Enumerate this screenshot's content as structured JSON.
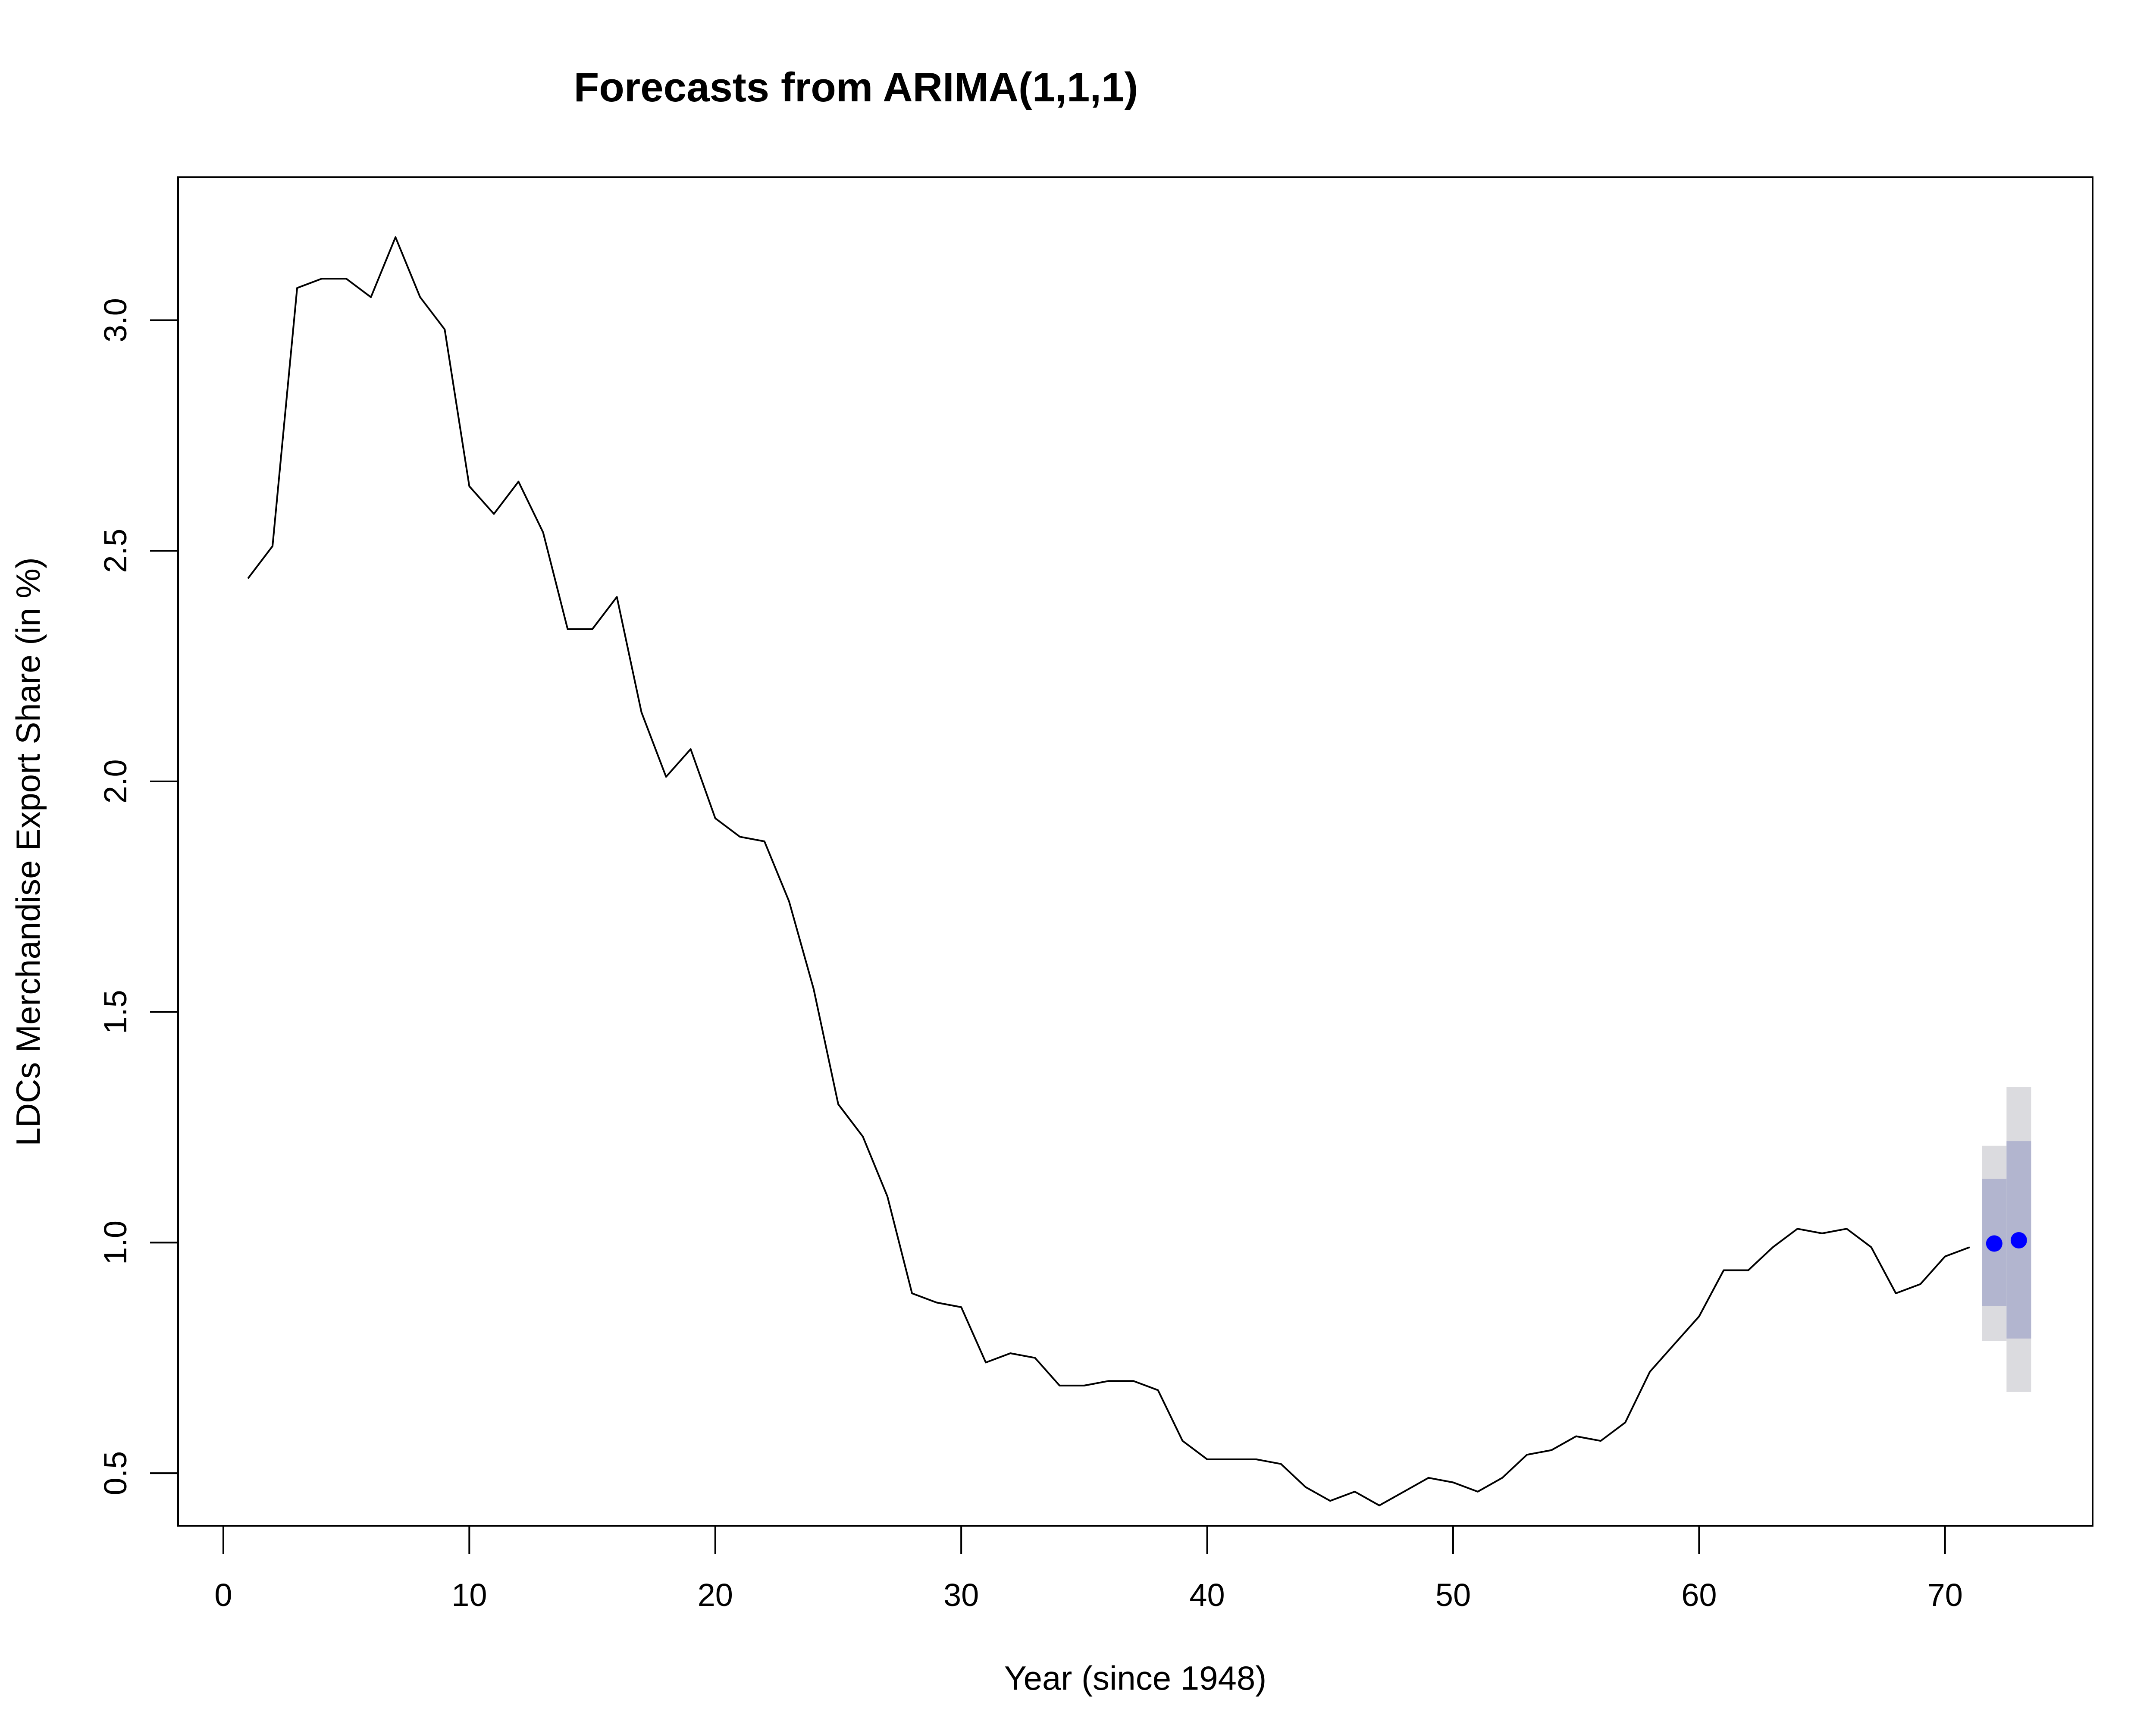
{
  "chart_data": {
    "type": "line",
    "title": "Forecasts from ARIMA(1,1,1)",
    "xlabel": "Year (since 1948)",
    "ylabel": "LDCs Merchandise Export Share (in %)",
    "xlim": [
      -1.84,
      76.0
    ],
    "ylim": [
      0.386,
      3.31
    ],
    "x_ticks": [
      0,
      10,
      20,
      30,
      40,
      50,
      60,
      70
    ],
    "y_ticks": [
      0.5,
      1.0,
      1.5,
      2.0,
      2.5,
      3.0
    ],
    "x_tick_labels": [
      "0",
      "10",
      "20",
      "30",
      "40",
      "50",
      "60",
      "70"
    ],
    "y_tick_labels": [
      "0.5",
      "1.0",
      "1.5",
      "2.0",
      "2.5",
      "3.0"
    ],
    "grid": false,
    "legend": "none",
    "series": [
      {
        "kind": "observed",
        "color": "#000000",
        "x": [
          1,
          2,
          3,
          4,
          5,
          6,
          7,
          8,
          9,
          10,
          11,
          12,
          13,
          14,
          15,
          16,
          17,
          18,
          19,
          20,
          21,
          22,
          23,
          24,
          25,
          26,
          27,
          28,
          29,
          30,
          31,
          32,
          33,
          34,
          35,
          36,
          37,
          38,
          39,
          40,
          41,
          42,
          43,
          44,
          45,
          46,
          47,
          48,
          49,
          50,
          51,
          52,
          53,
          54,
          55,
          56,
          57,
          58,
          59,
          60,
          61,
          62,
          63,
          64,
          65,
          66,
          67,
          68,
          69,
          70,
          71
        ],
        "values": [
          2.44,
          2.51,
          3.07,
          3.09,
          3.09,
          3.05,
          3.18,
          3.05,
          2.98,
          2.64,
          2.58,
          2.65,
          2.54,
          2.33,
          2.33,
          2.4,
          2.15,
          2.01,
          2.07,
          1.92,
          1.88,
          1.87,
          1.74,
          1.55,
          1.3,
          1.23,
          1.1,
          0.89,
          0.87,
          0.86,
          0.74,
          0.76,
          0.75,
          0.69,
          0.69,
          0.7,
          0.7,
          0.68,
          0.57,
          0.53,
          0.53,
          0.53,
          0.52,
          0.47,
          0.44,
          0.46,
          0.43,
          0.46,
          0.49,
          0.48,
          0.46,
          0.49,
          0.54,
          0.55,
          0.58,
          0.57,
          0.61,
          0.72,
          0.78,
          0.84,
          0.94,
          0.94,
          0.99,
          1.03,
          1.02,
          1.03,
          0.99,
          0.89,
          0.91,
          0.97,
          0.99
        ]
      },
      {
        "kind": "forecast",
        "color": "#0000ff",
        "x": [
          72,
          73
        ],
        "values": [
          0.998,
          1.005
        ],
        "lo80": [
          0.862,
          0.792
        ],
        "hi80": [
          1.138,
          1.22
        ],
        "lo95": [
          0.787,
          0.676
        ],
        "hi95": [
          1.21,
          1.337
        ],
        "band80_color": "#b2b5cf",
        "band95_color": "#dbdbdf"
      }
    ]
  }
}
